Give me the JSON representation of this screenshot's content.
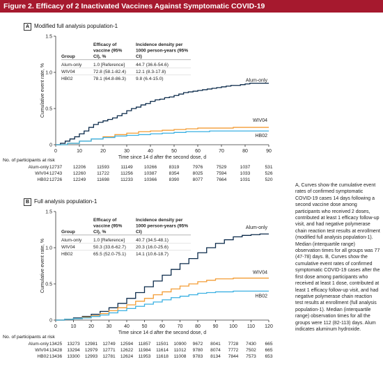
{
  "figure": {
    "title": "Figure 2. Efficacy of 2 Inactivated Vaccines Against Symptomatic COVID-19",
    "caption": "A, Curves show the cumulative event rates of confirmed symptomatic COVID-19 cases 14 days following a second vaccine dose among participants who received 2 doses, contributed at least 1 efficacy follow-up visit, and had negative polymerase chain reaction test results at enrollment (modified full analysis population-1). Median (interquartile range) observation times for all groups was 77 (47-78) days. B, Curves show the cumulative event rates of confirmed symptomatic COVID-19 cases after the first dose among participants who received at least 1 dose, contributed at least 1 efficacy follow-up visit, and had negative polymerase chain reaction test results at enrollment (full analysis population-1). Median (interquartile range) observation times for all the groups were 112 (82-113) days. Alum indicates aluminum hydroxide.",
    "colors": {
      "alum": "#0b2a4a",
      "wiv04": "#f39c34",
      "hb02": "#3ab0e2",
      "title_bg": "#a6192e"
    }
  },
  "chart_data": [
    {
      "type": "line",
      "panel": "A",
      "title": "Modified full analysis population-1",
      "xlabel": "Time since 14 d after the second dose, d",
      "ylabel": "Cumulative event rate, %",
      "xlim": [
        0,
        90
      ],
      "ylim": [
        0,
        1.5
      ],
      "xticks": [
        0,
        10,
        20,
        30,
        40,
        50,
        60,
        70,
        80,
        90
      ],
      "yticks": [
        0,
        0.5,
        1.0,
        1.5
      ],
      "ytick_labels": [
        "0",
        "0.5",
        "1.0",
        "1.5"
      ],
      "table": {
        "headers": [
          "Group",
          "Efficacy of vaccine (95% CI), %",
          "Incidence density per 1000 person-years (95% CI)"
        ],
        "rows": [
          [
            "Alum-only",
            "1.0 [Reference]",
            "44.7 (36.6-54.6)"
          ],
          [
            "WIV04",
            "72.8 (58.1-82.4)",
            "12.1 (8.3-17.8)"
          ],
          [
            "HB02",
            "78.1 (64.8-86.3)",
            "9.8 (6.4-15.0)"
          ]
        ]
      },
      "series": [
        {
          "name": "Alum-only",
          "color": "#0b2a4a",
          "x": [
            0,
            2,
            4,
            6,
            8,
            10,
            12,
            14,
            16,
            18,
            20,
            22,
            24,
            26,
            28,
            30,
            32,
            34,
            36,
            38,
            40,
            42,
            44,
            46,
            48,
            50,
            52,
            54,
            56,
            58,
            60,
            62,
            64,
            66,
            68,
            70,
            72,
            74,
            76,
            78,
            80,
            82,
            85,
            90
          ],
          "y": [
            0,
            0.02,
            0.05,
            0.08,
            0.11,
            0.15,
            0.19,
            0.24,
            0.28,
            0.31,
            0.33,
            0.35,
            0.37,
            0.4,
            0.43,
            0.47,
            0.5,
            0.52,
            0.55,
            0.57,
            0.6,
            0.62,
            0.63,
            0.65,
            0.66,
            0.68,
            0.7,
            0.72,
            0.73,
            0.74,
            0.75,
            0.76,
            0.77,
            0.78,
            0.79,
            0.8,
            0.81,
            0.82,
            0.82,
            0.83,
            0.84,
            0.85,
            0.85,
            0.85
          ]
        },
        {
          "name": "WIV04",
          "color": "#f39c34",
          "x": [
            0,
            5,
            10,
            15,
            20,
            25,
            30,
            35,
            40,
            45,
            50,
            55,
            60,
            65,
            70,
            75,
            80,
            85,
            90
          ],
          "y": [
            0,
            0.02,
            0.05,
            0.08,
            0.11,
            0.14,
            0.16,
            0.18,
            0.19,
            0.2,
            0.21,
            0.22,
            0.23,
            0.23,
            0.23,
            0.24,
            0.24,
            0.24,
            0.24
          ]
        },
        {
          "name": "HB02",
          "color": "#3ab0e2",
          "x": [
            0,
            5,
            10,
            15,
            20,
            25,
            30,
            35,
            40,
            45,
            50,
            55,
            60,
            65,
            70,
            75,
            80,
            85,
            90
          ],
          "y": [
            0,
            0.02,
            0.05,
            0.08,
            0.1,
            0.12,
            0.13,
            0.14,
            0.15,
            0.16,
            0.17,
            0.18,
            0.18,
            0.19,
            0.19,
            0.19,
            0.19,
            0.19,
            0.19
          ]
        }
      ],
      "risk": {
        "title": "No. of participants at risk",
        "rows": [
          {
            "group": "Alum-only",
            "values": [
              "12737",
              "12206",
              "11593",
              "11149",
              "10266",
              "8319",
              "7976",
              "7529",
              "1037",
              "531"
            ]
          },
          {
            "group": "WIV04",
            "values": [
              "12743",
              "12260",
              "11722",
              "11256",
              "10387",
              "8354",
              "8025",
              "7594",
              "1033",
              "526"
            ]
          },
          {
            "group": "HB02",
            "values": [
              "12726",
              "12249",
              "11698",
              "11233",
              "10366",
              "8390",
              "8077",
              "7664",
              "1031",
              "520"
            ]
          }
        ]
      }
    },
    {
      "type": "line",
      "panel": "B",
      "title": "Full analysis population-1",
      "xlabel": "Time since 14 d after the second dose, d",
      "ylabel": "Cumulative event rate, %",
      "xlim": [
        0,
        120
      ],
      "ylim": [
        0,
        1.5
      ],
      "xticks": [
        0,
        10,
        20,
        30,
        40,
        50,
        60,
        70,
        80,
        90,
        100,
        110,
        120
      ],
      "yticks": [
        0,
        0.5,
        1.0,
        1.5
      ],
      "ytick_labels": [
        "0",
        "0.5",
        "1.0",
        "1.5"
      ],
      "table": {
        "headers": [
          "Group",
          "Efficacy of vaccine (95% CI), %",
          "Incidence density per 1000 person-years (95% CI)"
        ],
        "rows": [
          [
            "Alum-only",
            "1.0 [Reference]",
            "40.7 (34.5-48.1)"
          ],
          [
            "WIV04",
            "50.3 (33.6-62.7)",
            "20.3 (16.0-25.6)"
          ],
          [
            "HB02",
            "65.5 (52.0-75.1)",
            "14.1 (10.6-18.7)"
          ]
        ]
      },
      "series": [
        {
          "name": "Alum-only",
          "color": "#0b2a4a",
          "x": [
            0,
            5,
            10,
            15,
            20,
            25,
            30,
            35,
            40,
            45,
            50,
            55,
            60,
            65,
            70,
            75,
            80,
            85,
            90,
            95,
            100,
            105,
            110,
            115,
            120
          ],
          "y": [
            0,
            0.01,
            0.03,
            0.05,
            0.08,
            0.12,
            0.17,
            0.23,
            0.3,
            0.38,
            0.46,
            0.54,
            0.62,
            0.7,
            0.78,
            0.85,
            0.93,
            1.0,
            1.06,
            1.11,
            1.15,
            1.17,
            1.18,
            1.19,
            1.19
          ]
        },
        {
          "name": "WIV04",
          "color": "#f39c34",
          "x": [
            0,
            5,
            10,
            15,
            20,
            25,
            30,
            35,
            40,
            45,
            50,
            55,
            60,
            65,
            70,
            75,
            80,
            85,
            90,
            95,
            100,
            105,
            110,
            115,
            120
          ],
          "y": [
            0,
            0.01,
            0.02,
            0.04,
            0.06,
            0.09,
            0.13,
            0.17,
            0.21,
            0.26,
            0.3,
            0.35,
            0.39,
            0.43,
            0.47,
            0.5,
            0.53,
            0.55,
            0.57,
            0.57,
            0.58,
            0.58,
            0.58,
            0.58,
            0.58
          ]
        },
        {
          "name": "HB02",
          "color": "#3ab0e2",
          "x": [
            0,
            5,
            10,
            15,
            20,
            25,
            30,
            35,
            40,
            45,
            50,
            55,
            60,
            65,
            70,
            75,
            80,
            85,
            90,
            95,
            100,
            105,
            110,
            115,
            120
          ],
          "y": [
            0,
            0.01,
            0.02,
            0.03,
            0.05,
            0.07,
            0.1,
            0.13,
            0.16,
            0.19,
            0.22,
            0.25,
            0.28,
            0.31,
            0.33,
            0.35,
            0.37,
            0.38,
            0.39,
            0.39,
            0.4,
            0.4,
            0.4,
            0.4,
            0.4
          ]
        }
      ],
      "risk": {
        "title": "No. of participants at risk",
        "rows": [
          {
            "group": "Alum-only",
            "values": [
              "13425",
              "13273",
              "12981",
              "12749",
              "12594",
              "11857",
              "11501",
              "10900",
              "9672",
              "8041",
              "7728",
              "7430",
              "665"
            ]
          },
          {
            "group": "WIV04",
            "values": [
              "13428",
              "13294",
              "12979",
              "12771",
              "12622",
              "11984",
              "11614",
              "11012",
              "9780",
              "8074",
              "7772",
              "7502",
              "665"
            ]
          },
          {
            "group": "HB02",
            "values": [
              "13436",
              "13300",
              "12993",
              "12781",
              "12624",
              "11953",
              "11618",
              "11008",
              "9783",
              "8134",
              "7844",
              "7573",
              "653"
            ]
          }
        ]
      }
    }
  ]
}
